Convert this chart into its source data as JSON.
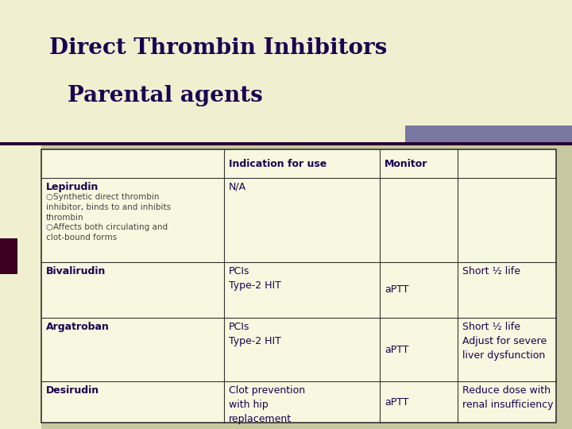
{
  "title_line1": "Direct Thrombin Inhibitors",
  "title_line2": "Parental agents",
  "title_color": "#1a0050",
  "slide_bg": "#c8c8a0",
  "title_bg": "#f0f0d0",
  "table_bg": "#f8f8e0",
  "accent_bar_color": "#7878a0",
  "left_bar_color": "#3d0020",
  "border_color": "#333333",
  "text_color": "#1a0050",
  "bullet_text_color": "#444444",
  "header_row": [
    "",
    "Indication for use",
    "Monitor",
    ""
  ],
  "rows": [
    {
      "col0_bold": "Lepirudin",
      "col0_rest": "○Synthetic direct thrombin\ninhibitor, binds to and inhibits\nthrombin\n○Affects both circulating and\nclot-bound forms",
      "col1": "N/A",
      "col2": "",
      "col3": ""
    },
    {
      "col0_bold": "Bivalirudin",
      "col0_rest": "",
      "col1": "PCIs\nType-2 HIT",
      "col2": "aPTT",
      "col3": "Short ½ life"
    },
    {
      "col0_bold": "Argatroban",
      "col0_rest": "",
      "col1": "PCIs\nType-2 HIT",
      "col2": "aPTT",
      "col3": "Short ½ life\nAdjust for severe\nliver dysfunction"
    },
    {
      "col0_bold": "Desirudin",
      "col0_rest": "",
      "col1": "Clot prevention\nwith hip\nreplacement",
      "col2": "aPTT",
      "col3": "Reduce dose with\nrenal insufficiency"
    }
  ],
  "title_font_size": 20,
  "header_font_size": 9,
  "cell_font_size": 9,
  "bullet_font_size": 7.5
}
